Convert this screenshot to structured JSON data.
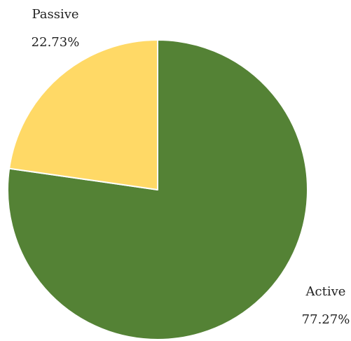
{
  "chart_data": {
    "type": "pie",
    "title": "",
    "start_angle_deg": 0,
    "direction": "clockwise",
    "slices": [
      {
        "label": "Active",
        "value": 77.27,
        "value_label": "77.27%",
        "color": "#548235"
      },
      {
        "label": "Passive",
        "value": 22.73,
        "value_label": "22.73%",
        "color": "#FFD966"
      }
    ],
    "slice_border_color": "#ffffff",
    "legend": "none"
  }
}
